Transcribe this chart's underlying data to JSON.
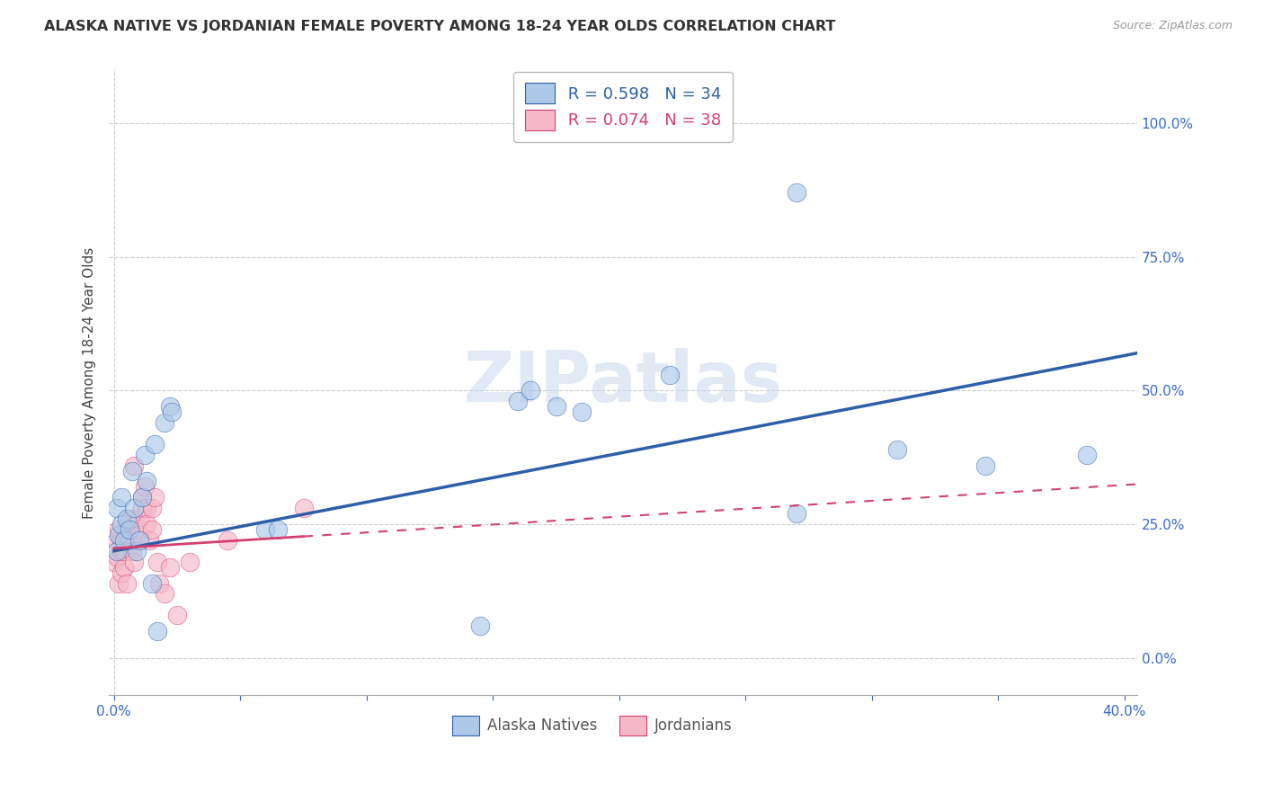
{
  "title": "ALASKA NATIVE VS JORDANIAN FEMALE POVERTY AMONG 18-24 YEAR OLDS CORRELATION CHART",
  "source": "Source: ZipAtlas.com",
  "ylabel": "Female Poverty Among 18-24 Year Olds",
  "xlim": [
    -0.002,
    0.405
  ],
  "ylim": [
    -0.07,
    1.1
  ],
  "xtick_positions": [
    0.0,
    0.05,
    0.1,
    0.15,
    0.2,
    0.25,
    0.3,
    0.35,
    0.4
  ],
  "xticklabels": [
    "0.0%",
    "",
    "",
    "",
    "",
    "",
    "",
    "",
    "40.0%"
  ],
  "yticks_right": [
    0.0,
    0.25,
    0.5,
    0.75,
    1.0
  ],
  "yticklabels_right": [
    "0.0%",
    "25.0%",
    "50.0%",
    "75.0%",
    "100.0%"
  ],
  "alaska_color": "#adc8e8",
  "jordan_color": "#f5b8c8",
  "trendline_alaska_color": "#2d5fa8",
  "trendline_jordan_color": "#d44070",
  "legend_label_1": " R = 0.598   N = 34",
  "legend_label_2": " R = 0.074   N = 38",
  "watermark": "ZIPatlas",
  "alaska_x": [
    0.001,
    0.001,
    0.002,
    0.003,
    0.003,
    0.004,
    0.005,
    0.006,
    0.007,
    0.008,
    0.009,
    0.01,
    0.011,
    0.012,
    0.013,
    0.015,
    0.016,
    0.017,
    0.02,
    0.022,
    0.023,
    0.06,
    0.065,
    0.145,
    0.16,
    0.165,
    0.175,
    0.185,
    0.22,
    0.27,
    0.27,
    0.31,
    0.345,
    0.385
  ],
  "alaska_y": [
    0.2,
    0.28,
    0.23,
    0.25,
    0.3,
    0.22,
    0.26,
    0.24,
    0.35,
    0.28,
    0.2,
    0.22,
    0.3,
    0.38,
    0.33,
    0.14,
    0.4,
    0.05,
    0.44,
    0.47,
    0.46,
    0.24,
    0.24,
    0.06,
    0.48,
    0.5,
    0.47,
    0.46,
    0.53,
    0.87,
    0.27,
    0.39,
    0.36,
    0.38
  ],
  "jordan_x": [
    0.0,
    0.001,
    0.001,
    0.002,
    0.002,
    0.003,
    0.003,
    0.003,
    0.004,
    0.004,
    0.005,
    0.005,
    0.005,
    0.006,
    0.006,
    0.007,
    0.008,
    0.008,
    0.009,
    0.01,
    0.01,
    0.011,
    0.011,
    0.012,
    0.013,
    0.013,
    0.014,
    0.015,
    0.015,
    0.016,
    0.017,
    0.018,
    0.02,
    0.022,
    0.025,
    0.03,
    0.045,
    0.075
  ],
  "jordan_y": [
    0.18,
    0.19,
    0.22,
    0.14,
    0.24,
    0.16,
    0.2,
    0.22,
    0.17,
    0.2,
    0.14,
    0.22,
    0.24,
    0.22,
    0.26,
    0.2,
    0.18,
    0.36,
    0.25,
    0.26,
    0.23,
    0.28,
    0.3,
    0.32,
    0.28,
    0.25,
    0.22,
    0.28,
    0.24,
    0.3,
    0.18,
    0.14,
    0.12,
    0.17,
    0.08,
    0.18,
    0.22,
    0.28
  ],
  "trendline_alaska_x0": 0.0,
  "trendline_alaska_x1": 0.405,
  "trendline_alaska_y0": 0.2,
  "trendline_alaska_y1": 0.57,
  "trendline_jordan_solid_x0": 0.0,
  "trendline_jordan_solid_x1": 0.075,
  "trendline_jordan_dashed_x0": 0.075,
  "trendline_jordan_dashed_x1": 0.405,
  "trendline_jordan_y0": 0.205,
  "trendline_jordan_y1": 0.325
}
